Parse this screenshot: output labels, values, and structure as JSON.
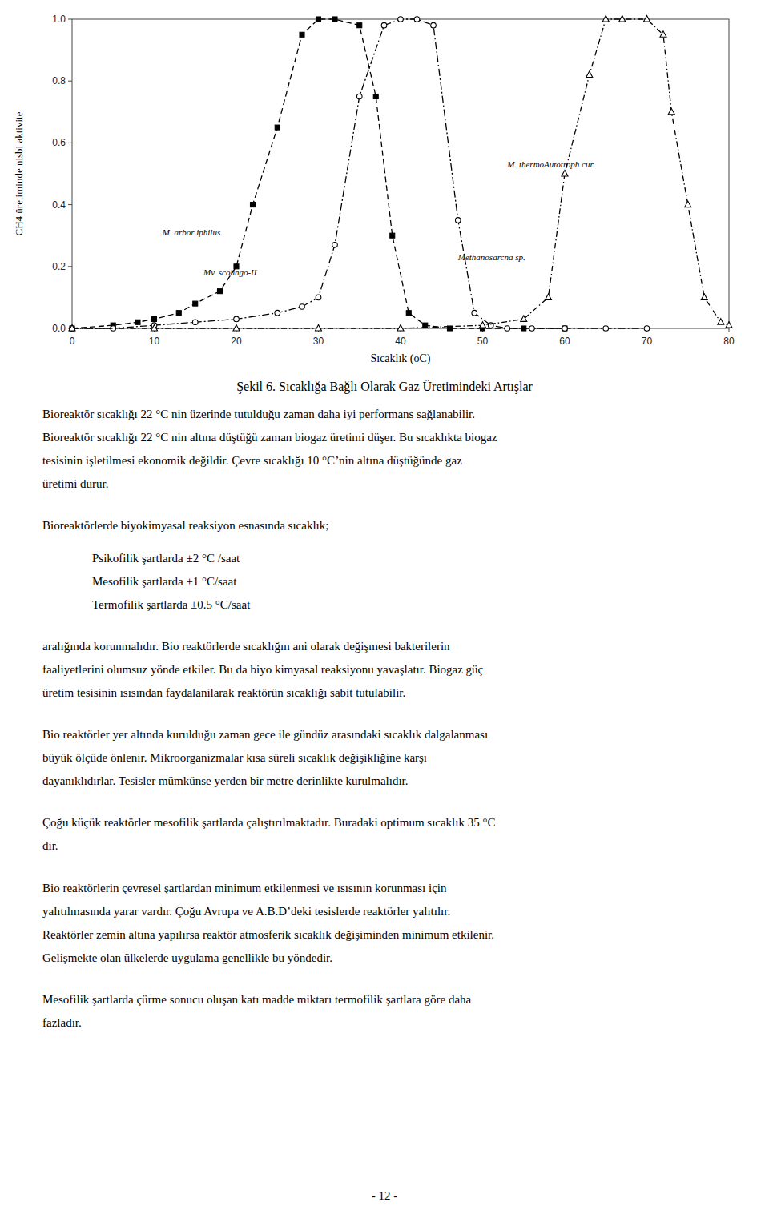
{
  "chart_data": {
    "type": "line",
    "title": "Şekil 6. Sıcaklığa Bağlı Olarak Gaz Üretimindeki Artışlar",
    "x_label": "Sıcaklık (oC)",
    "y_label": "CH4 üretiminde nisbi aktivite",
    "xlim": [
      0,
      80
    ],
    "ylim": [
      0,
      1.0
    ],
    "xticks": [
      0,
      10,
      20,
      30,
      40,
      50,
      60,
      70,
      80
    ],
    "yticks": [
      {
        "value": 0,
        "label": "0.0"
      },
      0.2,
      0.4,
      0.6,
      0.8,
      {
        "value": 1.0,
        "label": "1.0"
      }
    ],
    "grid": false,
    "series": [
      {
        "color": "#000000",
        "marker": "square",
        "line_style": "dashed",
        "x": [
          0,
          5,
          8,
          10,
          13,
          15,
          18,
          20,
          22,
          25,
          28,
          30,
          32,
          35,
          37,
          39,
          41,
          43,
          46,
          50,
          55,
          60
        ],
        "values": [
          0,
          0.01,
          0.02,
          0.03,
          0.05,
          0.08,
          0.12,
          0.2,
          0.4,
          0.65,
          0.95,
          1.0,
          1.0,
          0.98,
          0.75,
          0.3,
          0.05,
          0.01,
          0.0,
          0.0,
          0.0,
          0.0
        ]
      },
      {
        "color": "#000000",
        "marker": "circle-open",
        "line_style": "long-dash-dot",
        "x": [
          0,
          5,
          10,
          15,
          20,
          25,
          28,
          30,
          32,
          35,
          38,
          40,
          42,
          44,
          47,
          49,
          51,
          53,
          56,
          60,
          65,
          70
        ],
        "values": [
          0,
          0.0,
          0.01,
          0.02,
          0.03,
          0.05,
          0.07,
          0.1,
          0.27,
          0.75,
          0.98,
          1.0,
          1.0,
          0.98,
          0.35,
          0.05,
          0.01,
          0.0,
          0.0,
          0.0,
          0.0,
          0.0
        ]
      },
      {
        "color": "#000000",
        "marker": "triangle-open",
        "line_style": "dash-dot",
        "x": [
          0,
          10,
          20,
          30,
          40,
          50,
          55,
          58,
          60,
          63,
          65,
          67,
          70,
          72,
          73,
          75,
          77,
          79,
          80
        ],
        "values": [
          0,
          0.0,
          0.0,
          0.0,
          0.0,
          0.01,
          0.03,
          0.1,
          0.5,
          0.82,
          1.0,
          1.0,
          1.0,
          0.95,
          0.7,
          0.4,
          0.1,
          0.02,
          0.01
        ]
      }
    ],
    "annotations": [
      {
        "text": "M. arbor iphilus",
        "x": 11,
        "y": 0.3
      },
      {
        "text": "Mv. scohngo-II",
        "x": 16,
        "y": 0.17
      },
      {
        "text": "Methanosarcna sp.",
        "x": 47,
        "y": 0.22
      },
      {
        "text": "M. thermoAutotroph cur.",
        "x": 53,
        "y": 0.52
      }
    ]
  },
  "page_text": {
    "paragraphs": [
      [
        "Bioreaktör sıcaklığı 22 °C nin üzerinde tutulduğu zaman daha iyi performans sağlanabilir.",
        "Bioreaktör sıcaklığı 22 °C nin altına düştüğü zaman biogaz üretimi düşer. Bu sıcaklıkta biogaz",
        "tesisinin işletilmesi ekonomik değildir. Çevre sıcaklığı 10 °C’nin altına düştüğünde gaz",
        "üretimi durur."
      ],
      [
        "Bioreaktörlerde biyokimyasal reaksiyon esnasında sıcaklık;"
      ],
      [
        "aralığında korunmalıdır.  Bio reaktörlerde sıcaklığın ani olarak değişmesi bakterilerin",
        "faaliyetlerini olumsuz yönde etkiler. Bu da  biyo kimyasal reaksiyonu yavaşlatır. Biogaz güç",
        "üretim tesisinin ısısından faydalanilarak reaktörün sıcaklığı sabit tutulabilir."
      ],
      [
        "Bio reaktörler yer altında kurulduğu zaman gece ile gündüz arasındaki sıcaklık dalgalanması",
        "büyük ölçüde önlenir.  Mikroorganizmalar kısa süreli sıcaklık değişikliğine karşı",
        "dayanıklıdırlar. Tesisler mümkünse yerden bir metre derinlikte kurulmalıdır."
      ],
      [
        "Çoğu küçük reaktörler mesofilik şartlarda çalıştırılmaktadır. Buradaki optimum sıcaklık 35 °C",
        "dir."
      ],
      [
        "Bio reaktörlerin çevresel şartlardan minimum etkilenmesi ve ısısının korunması için",
        "yalıtılmasında yarar vardır. Çoğu Avrupa ve A.B.D’deki tesislerde reaktörler yalıtılır.",
        "Reaktörler zemin altına yapılırsa reaktör atmosferik sıcaklık değişiminden minimum etkilenir.",
        "Gelişmekte olan ülkelerde uygulama genellikle bu yöndedir."
      ],
      [
        "Mesofilik şartlarda çürme sonucu oluşan katı madde miktarı termofilik şartlara göre daha",
        "fazladır."
      ]
    ],
    "bullets": [
      "Psikofilik şartlarda ±2 °C /saat",
      "Mesofilik şartlarda ±1 °C/saat",
      "Termofilik şartlarda ±0.5 °C/saat"
    ],
    "page_number": "- 12 -"
  }
}
